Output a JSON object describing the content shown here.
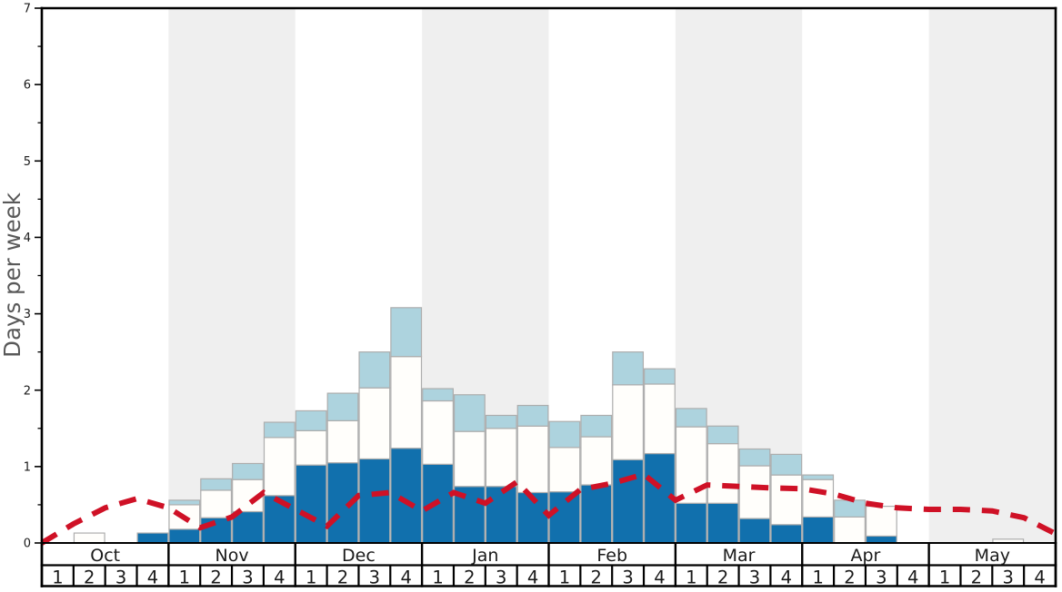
{
  "chart_data": {
    "type": "bar",
    "title": "",
    "ylabel": "Days per week",
    "ylim": [
      0,
      7
    ],
    "y_major_ticks": [
      0,
      1,
      2,
      3,
      4,
      5,
      6,
      7
    ],
    "y_minor_tick_step": 0.5,
    "grid": "off",
    "legend": "none",
    "months": [
      "Oct",
      "Nov",
      "Dec",
      "Jan",
      "Feb",
      "Mar",
      "Apr",
      "May"
    ],
    "week_labels": [
      "1",
      "2",
      "3",
      "4"
    ],
    "shaded_month_indices": [
      1,
      3,
      5,
      7
    ],
    "stacked_series": [
      {
        "name": "dark-blue-days",
        "color": "#1170ad",
        "values": [
          0,
          0,
          0,
          0.13,
          0.18,
          0.33,
          0.41,
          0.62,
          1.02,
          1.05,
          1.1,
          1.24,
          1.03,
          0.74,
          0.74,
          0.66,
          0.67,
          0.76,
          1.09,
          1.17,
          0.52,
          0.52,
          0.32,
          0.24,
          0.34,
          0,
          0.09,
          0,
          0,
          0,
          0,
          0
        ]
      },
      {
        "name": "white-days",
        "color": "#fffefb",
        "values": [
          0,
          0.13,
          0,
          0,
          0.32,
          0.36,
          0.42,
          0.76,
          0.45,
          0.55,
          0.93,
          1.2,
          0.83,
          0.72,
          0.76,
          0.87,
          0.58,
          0.63,
          0.98,
          0.91,
          1.0,
          0.78,
          0.69,
          0.65,
          0.49,
          0.34,
          0.39,
          0,
          0,
          0,
          0.05,
          0
        ]
      },
      {
        "name": "light-blue-days",
        "color": "#add3de",
        "values": [
          0,
          0,
          0,
          0,
          0.06,
          0.15,
          0.21,
          0.2,
          0.26,
          0.36,
          0.47,
          0.64,
          0.16,
          0.48,
          0.17,
          0.27,
          0.34,
          0.28,
          0.43,
          0.2,
          0.24,
          0.23,
          0.22,
          0.27,
          0.06,
          0.22,
          0,
          0,
          0,
          0,
          0,
          0
        ]
      }
    ],
    "line_series": {
      "name": "red-dashed-line",
      "color": "#cf1126",
      "style": "dashed",
      "x_positions": "week-start-boundaries-plus-right-edge",
      "values": [
        0,
        0.25,
        0.46,
        0.58,
        0.46,
        0.2,
        0.34,
        0.66,
        0.44,
        0.22,
        0.62,
        0.66,
        0.42,
        0.66,
        0.52,
        0.8,
        0.36,
        0.7,
        0.78,
        0.9,
        0.56,
        0.76,
        0.74,
        0.72,
        0.71,
        0.64,
        0.52,
        0.46,
        0.44,
        0.44,
        0.42,
        0.33,
        0.12
      ]
    },
    "colors": {
      "band": "#efefef",
      "bar_border": "#adadad",
      "spine": "#000000",
      "tick_text": "#1a1a1a",
      "axis_label": "#595959"
    }
  }
}
